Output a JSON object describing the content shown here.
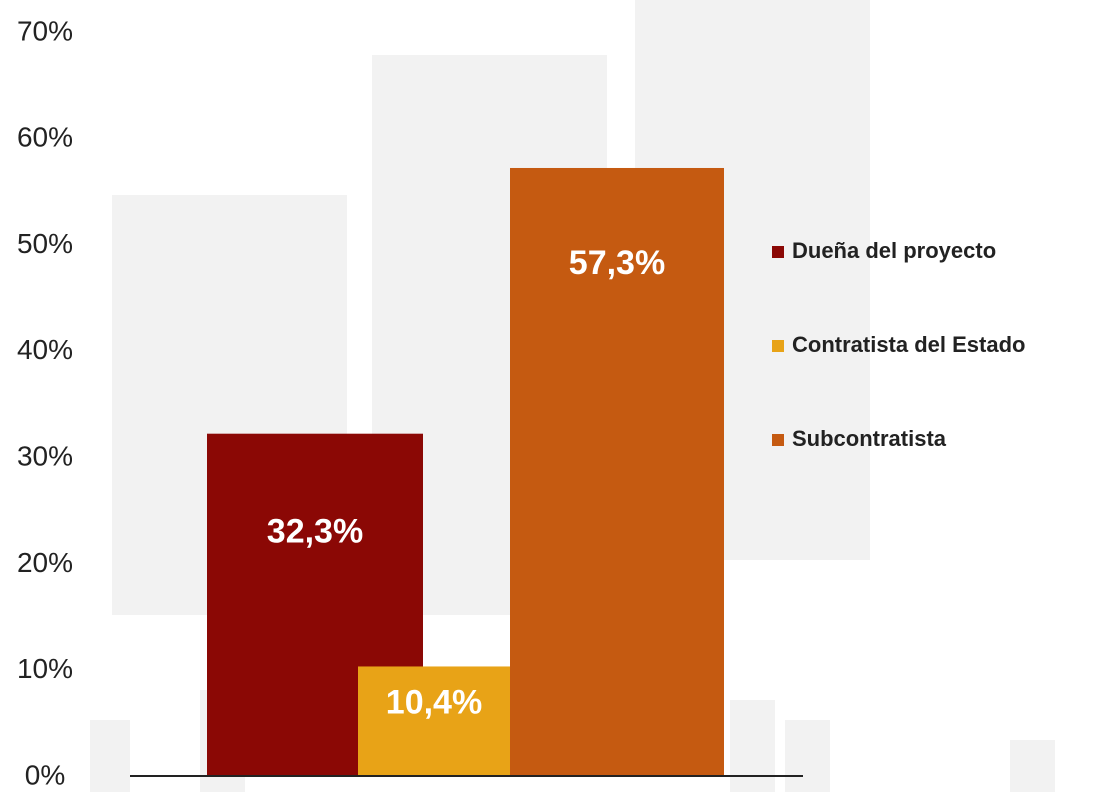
{
  "chart_data": {
    "type": "bar",
    "categories": [
      null
    ],
    "series": [
      {
        "name": "Dueña del proyecto",
        "color": "#8b0805",
        "values": [
          32.3
        ],
        "value_labels": [
          "32,3%"
        ]
      },
      {
        "name": "Contratista del Estado",
        "color": "#e8a317",
        "values": [
          10.4
        ],
        "value_labels": [
          "10,4%"
        ]
      },
      {
        "name": "Subcontratista",
        "color": "#c55a11",
        "values": [
          57.3
        ],
        "value_labels": [
          "57,3%"
        ]
      }
    ],
    "ylim": [
      0,
      70
    ],
    "yticks": [
      {
        "value": 0,
        "label": "0%"
      },
      {
        "value": 10,
        "label": "10%"
      },
      {
        "value": 20,
        "label": "20%"
      },
      {
        "value": 30,
        "label": "30%"
      },
      {
        "value": 40,
        "label": "40%"
      },
      {
        "value": 50,
        "label": "50%"
      },
      {
        "value": 60,
        "label": "60%"
      },
      {
        "value": 70,
        "label": "70%"
      }
    ],
    "legend": "right"
  }
}
